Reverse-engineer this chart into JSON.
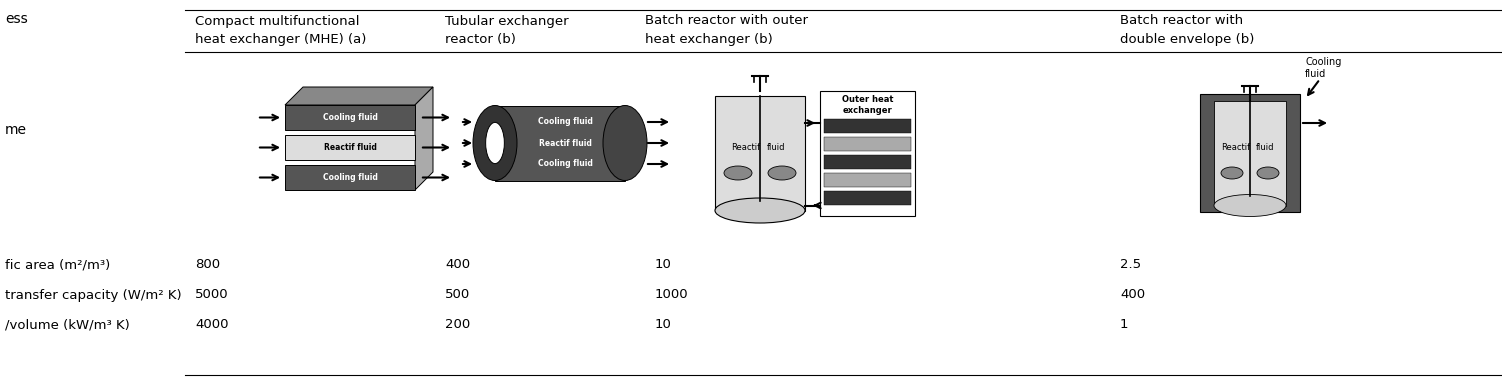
{
  "col_headers": [
    "Compact multifunctional\nheat exchanger (MHE) (a)",
    "Tubular exchanger\nreactor (b)",
    "Batch reactor with outer\nheat exchanger (b)",
    "Batch reactor with\ndouble envelope (b)"
  ],
  "row_labels_partial": [
    "fic area (m²/m³)",
    "transfer capacity (W/m² K)",
    "/volume (kW/m³ K)"
  ],
  "left_labels": [
    "ess",
    "me"
  ],
  "data": [
    [
      "800",
      "400",
      "10",
      "2.5"
    ],
    [
      "5000",
      "500",
      "1000",
      "400"
    ],
    [
      "4000",
      "200",
      "10",
      "1"
    ]
  ],
  "background_color": "#ffffff",
  "text_color": "#000000"
}
